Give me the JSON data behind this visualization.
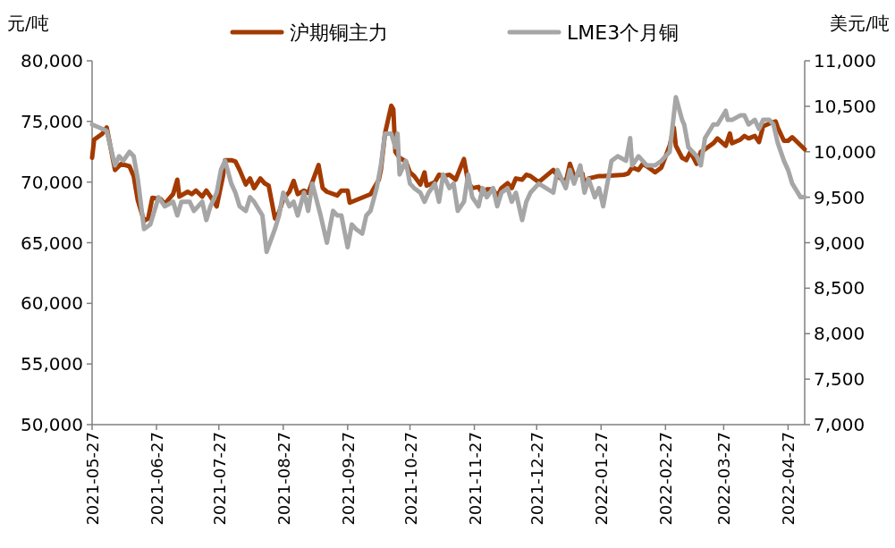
{
  "chart_data": {
    "type": "line",
    "ylabel": "元/吨",
    "y2label": "美元/吨",
    "legend": "top",
    "grid": false,
    "xlim": [
      "2021-05-27",
      "2022-05-05"
    ],
    "xticks": [
      "2021-05-27",
      "2021-06-27",
      "2021-07-27",
      "2021-08-27",
      "2021-09-27",
      "2021-10-27",
      "2021-11-27",
      "2021-12-27",
      "2022-01-27",
      "2022-02-27",
      "2022-03-27",
      "2022-04-27"
    ],
    "ylim": [
      50000,
      80000
    ],
    "yticks": [
      {
        "value": 50000,
        "label": "50,000"
      },
      {
        "value": 55000,
        "label": "55,000"
      },
      {
        "value": 60000,
        "label": "60,000"
      },
      {
        "value": 65000,
        "label": "65,000"
      },
      {
        "value": 70000,
        "label": "70,000"
      },
      {
        "value": 75000,
        "label": "75,000"
      },
      {
        "value": 80000,
        "label": "80,000"
      }
    ],
    "y2lim": [
      7000,
      11000
    ],
    "y2ticks": [
      {
        "value": 7000,
        "label": "7,000"
      },
      {
        "value": 7500,
        "label": "7,500"
      },
      {
        "value": 8000,
        "label": "8,000"
      },
      {
        "value": 8500,
        "label": "8,500"
      },
      {
        "value": 9000,
        "label": "9,000"
      },
      {
        "value": 9500,
        "label": "9,500"
      },
      {
        "value": 10000,
        "label": "10,000"
      },
      {
        "value": 10500,
        "label": "10,500"
      },
      {
        "value": 11000,
        "label": "11,000"
      }
    ],
    "series": [
      {
        "name": "沪期铜主力",
        "color": "#a33a00",
        "x": [
          "2021-05-27",
          "2021-05-28",
          "2021-06-01",
          "2021-06-03",
          "2021-06-07",
          "2021-06-10",
          "2021-06-14",
          "2021-06-16",
          "2021-06-18",
          "2021-06-21",
          "2021-06-23",
          "2021-06-25",
          "2021-06-29",
          "2021-07-01",
          "2021-07-05",
          "2021-07-07",
          "2021-07-08",
          "2021-07-12",
          "2021-07-14",
          "2021-07-16",
          "2021-07-19",
          "2021-07-21",
          "2021-07-23",
          "2021-07-26",
          "2021-07-29",
          "2021-07-30",
          "2021-08-02",
          "2021-08-04",
          "2021-08-06",
          "2021-08-09",
          "2021-08-11",
          "2021-08-13",
          "2021-08-16",
          "2021-08-18",
          "2021-08-20",
          "2021-08-23",
          "2021-08-25",
          "2021-08-27",
          "2021-08-30",
          "2021-09-01",
          "2021-09-03",
          "2021-09-06",
          "2021-09-08",
          "2021-09-10",
          "2021-09-13",
          "2021-09-15",
          "2021-09-17",
          "2021-09-22",
          "2021-09-24",
          "2021-09-27",
          "2021-09-28",
          "2021-10-08",
          "2021-10-12",
          "2021-10-13",
          "2021-10-15",
          "2021-10-18",
          "2021-10-19",
          "2021-10-20",
          "2021-10-22",
          "2021-10-25",
          "2021-10-27",
          "2021-10-29",
          "2021-11-01",
          "2021-11-03",
          "2021-11-04",
          "2021-11-08",
          "2021-11-10",
          "2021-11-12",
          "2021-11-15",
          "2021-11-18",
          "2021-11-22",
          "2021-11-24",
          "2021-11-26",
          "2021-11-29",
          "2021-12-01",
          "2021-12-03",
          "2021-12-06",
          "2021-12-08",
          "2021-12-10",
          "2021-12-13",
          "2021-12-15",
          "2021-12-17",
          "2021-12-20",
          "2021-12-22",
          "2021-12-24",
          "2021-12-28",
          "2022-01-04",
          "2022-01-06",
          "2022-01-10",
          "2022-01-12",
          "2022-01-14",
          "2022-01-18",
          "2022-01-19",
          "2022-01-21",
          "2022-01-26",
          "2022-01-28",
          "2022-02-07",
          "2022-02-09",
          "2022-02-11",
          "2022-02-14",
          "2022-02-16",
          "2022-02-18",
          "2022-02-22",
          "2022-02-25",
          "2022-03-01",
          "2022-03-03",
          "2022-03-04",
          "2022-03-07",
          "2022-03-09",
          "2022-03-11",
          "2022-03-14",
          "2022-03-16",
          "2022-03-18",
          "2022-03-22",
          "2022-03-24",
          "2022-03-28",
          "2022-03-30",
          "2022-03-31",
          "2022-04-04",
          "2022-04-06",
          "2022-04-08",
          "2022-04-11",
          "2022-04-13",
          "2022-04-15",
          "2022-04-19",
          "2022-04-21",
          "2022-04-22",
          "2022-04-25",
          "2022-04-27",
          "2022-04-29",
          "2022-05-05"
        ],
        "values": [
          72000,
          73500,
          74000,
          74500,
          71000,
          71500,
          71300,
          70500,
          68500,
          66800,
          67000,
          68700,
          68600,
          68200,
          69000,
          70200,
          68800,
          69200,
          69000,
          69300,
          68800,
          69300,
          68800,
          68000,
          70500,
          71800,
          71800,
          71700,
          71000,
          69800,
          70300,
          69500,
          70300,
          69900,
          69700,
          67000,
          67500,
          68600,
          69200,
          70100,
          69000,
          69300,
          69100,
          70000,
          71400,
          69500,
          69200,
          68900,
          69300,
          69300,
          68300,
          69000,
          70200,
          71000,
          74000,
          76300,
          76000,
          72500,
          72000,
          71700,
          70800,
          70500,
          69800,
          70800,
          69700,
          70000,
          70600,
          70500,
          70600,
          70200,
          71900,
          70000,
          69500,
          69600,
          69000,
          69400,
          69400,
          68800,
          69500,
          69900,
          69500,
          70300,
          70200,
          70600,
          70500,
          70000,
          71000,
          70500,
          70000,
          71500,
          70500,
          70700,
          69800,
          70300,
          70500,
          70500,
          70600,
          70700,
          71200,
          71000,
          71500,
          71300,
          70800,
          71200,
          73000,
          74500,
          73000,
          72000,
          71800,
          72500,
          71500,
          72500,
          72700,
          73200,
          73600,
          73000,
          74000,
          73200,
          73500,
          73800,
          73600,
          73800,
          73300,
          74600,
          74900,
          75000,
          74500,
          73400,
          73400,
          73700,
          72700
        ]
      },
      {
        "name": "LME3个月铜",
        "color": "#a6a6a6",
        "axis": "y2",
        "x": [
          "2021-05-27",
          "2021-06-01",
          "2021-06-03",
          "2021-06-07",
          "2021-06-09",
          "2021-06-11",
          "2021-06-14",
          "2021-06-16",
          "2021-06-18",
          "2021-06-21",
          "2021-06-24",
          "2021-06-28",
          "2021-07-01",
          "2021-07-05",
          "2021-07-07",
          "2021-07-09",
          "2021-07-13",
          "2021-07-15",
          "2021-07-19",
          "2021-07-21",
          "2021-07-23",
          "2021-07-26",
          "2021-07-28",
          "2021-07-30",
          "2021-08-02",
          "2021-08-04",
          "2021-08-06",
          "2021-08-09",
          "2021-08-11",
          "2021-08-13",
          "2021-08-17",
          "2021-08-19",
          "2021-08-23",
          "2021-08-25",
          "2021-08-27",
          "2021-08-30",
          "2021-09-01",
          "2021-09-03",
          "2021-09-06",
          "2021-09-08",
          "2021-09-10",
          "2021-09-14",
          "2021-09-17",
          "2021-09-20",
          "2021-09-22",
          "2021-09-24",
          "2021-09-27",
          "2021-09-29",
          "2021-10-01",
          "2021-10-04",
          "2021-10-06",
          "2021-10-08",
          "2021-10-11",
          "2021-10-13",
          "2021-10-15",
          "2021-10-18",
          "2021-10-20",
          "2021-10-21",
          "2021-10-22",
          "2021-10-25",
          "2021-10-27",
          "2021-10-29",
          "2021-11-01",
          "2021-11-03",
          "2021-11-05",
          "2021-11-08",
          "2021-11-10",
          "2021-11-12",
          "2021-11-15",
          "2021-11-17",
          "2021-11-19",
          "2021-11-22",
          "2021-11-24",
          "2021-11-26",
          "2021-11-29",
          "2021-12-01",
          "2021-12-03",
          "2021-12-06",
          "2021-12-08",
          "2021-12-10",
          "2021-12-13",
          "2021-12-15",
          "2021-12-17",
          "2021-12-20",
          "2021-12-22",
          "2021-12-24",
          "2021-12-28",
          "2022-01-04",
          "2022-01-06",
          "2022-01-10",
          "2022-01-12",
          "2022-01-14",
          "2022-01-17",
          "2022-01-19",
          "2022-01-21",
          "2022-01-24",
          "2022-01-26",
          "2022-01-28",
          "2022-02-01",
          "2022-02-04",
          "2022-02-08",
          "2022-02-10",
          "2022-02-11",
          "2022-02-14",
          "2022-02-16",
          "2022-02-18",
          "2022-02-22",
          "2022-02-25",
          "2022-03-01",
          "2022-03-04",
          "2022-03-07",
          "2022-03-08",
          "2022-03-10",
          "2022-03-14",
          "2022-03-16",
          "2022-03-18",
          "2022-03-22",
          "2022-03-24",
          "2022-03-28",
          "2022-03-29",
          "2022-03-31",
          "2022-04-04",
          "2022-04-06",
          "2022-04-08",
          "2022-04-11",
          "2022-04-13",
          "2022-04-15",
          "2022-04-18",
          "2022-04-20",
          "2022-04-22",
          "2022-04-25",
          "2022-04-27",
          "2022-04-29",
          "2022-05-03",
          "2022-05-05"
        ],
        "values": [
          10300,
          10250,
          10230,
          9850,
          9950,
          9900,
          10000,
          9950,
          9700,
          9150,
          9200,
          9500,
          9400,
          9450,
          9300,
          9450,
          9450,
          9350,
          9450,
          9250,
          9400,
          9550,
          9800,
          9900,
          9650,
          9550,
          9400,
          9350,
          9500,
          9450,
          9300,
          8900,
          9150,
          9300,
          9550,
          9400,
          9450,
          9300,
          9550,
          9350,
          9650,
          9300,
          9000,
          9350,
          9300,
          9300,
          8950,
          9200,
          9150,
          9100,
          9300,
          9350,
          9600,
          9850,
          10200,
          10200,
          10050,
          10200,
          9750,
          9900,
          9650,
          9600,
          9550,
          9450,
          9550,
          9650,
          9450,
          9750,
          9600,
          9650,
          9350,
          9450,
          9750,
          9500,
          9400,
          9600,
          9500,
          9600,
          9400,
          9550,
          9600,
          9450,
          9550,
          9250,
          9450,
          9550,
          9650,
          9550,
          9800,
          9600,
          9800,
          9650,
          9850,
          9550,
          9700,
          9500,
          9600,
          9400,
          9900,
          9950,
          9900,
          10150,
          9850,
          9950,
          9900,
          9850,
          9850,
          9900,
          10000,
          10600,
          10350,
          10300,
          10050,
          9950,
          9850,
          10150,
          10300,
          10300,
          10450,
          10350,
          10350,
          10400,
          10400,
          10300,
          10350,
          10250,
          10350,
          10350,
          10300,
          10100,
          9900,
          9800,
          9650,
          9500,
          9500
        ]
      }
    ]
  }
}
